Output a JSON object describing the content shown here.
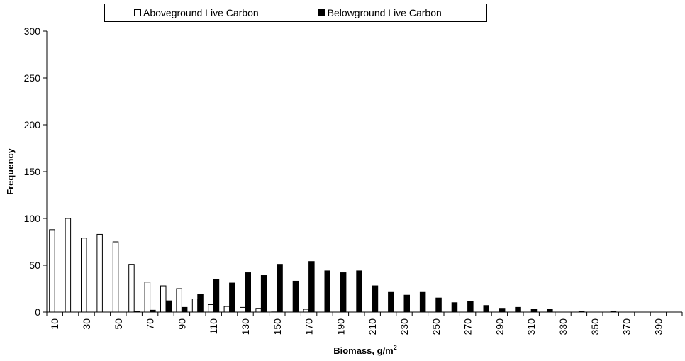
{
  "chart_data": {
    "type": "bar",
    "xlabel": "Biomass, g/m",
    "xlabel_sup": "2",
    "ylabel": "Frequency",
    "ylim": [
      0,
      300
    ],
    "yticks": [
      0,
      50,
      100,
      150,
      200,
      250,
      300
    ],
    "grid": false,
    "legend_position": "top",
    "categories": [
      10,
      20,
      30,
      40,
      50,
      60,
      70,
      80,
      90,
      100,
      110,
      120,
      130,
      140,
      150,
      160,
      170,
      180,
      190,
      200,
      210,
      220,
      230,
      240,
      250,
      260,
      270,
      280,
      290,
      300,
      310,
      320,
      330,
      340,
      350,
      360,
      370,
      380,
      390,
      400
    ],
    "tick_labels": [
      "10",
      "30",
      "50",
      "70",
      "90",
      "110",
      "130",
      "150",
      "170",
      "190",
      "210",
      "230",
      "250",
      "270",
      "290",
      "310",
      "330",
      "350",
      "370",
      "390"
    ],
    "series": [
      {
        "name": "Aboveground Live Carbon",
        "fill": "#ffffff",
        "values": [
          88,
          100,
          79,
          83,
          75,
          51,
          32,
          28,
          25,
          14,
          8,
          6,
          5,
          4,
          1,
          0,
          3,
          0,
          0,
          0,
          0,
          0,
          0,
          0,
          0,
          0,
          0,
          0,
          0,
          0,
          0,
          0,
          0,
          0,
          0,
          0,
          0,
          0,
          0,
          0
        ]
      },
      {
        "name": "Belowground Live Carbon",
        "fill": "#000000",
        "values": [
          0,
          0,
          0,
          0,
          0,
          1,
          2,
          12,
          5,
          19,
          35,
          31,
          42,
          39,
          51,
          33,
          54,
          44,
          42,
          44,
          28,
          21,
          18,
          21,
          15,
          10,
          11,
          7,
          4,
          5,
          3,
          3,
          0,
          1,
          0,
          1,
          0,
          0,
          0,
          0
        ]
      }
    ]
  }
}
